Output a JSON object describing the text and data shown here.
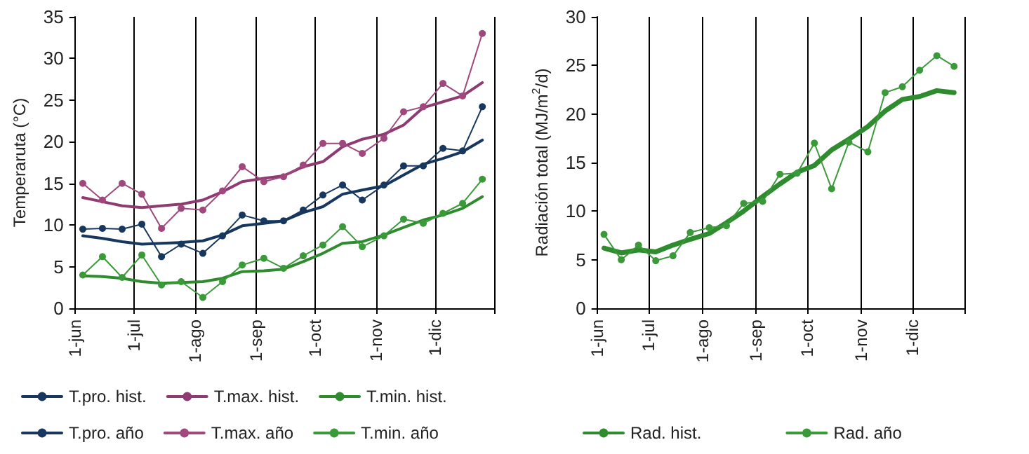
{
  "chart_data": [
    {
      "type": "line",
      "ylabel": "Temperaruta (°C)",
      "x": [
        "--06-05",
        "--06-15",
        "--06-25",
        "--07-05",
        "--07-15",
        "--07-25",
        "--08-05",
        "--08-15",
        "--08-25",
        "--09-05",
        "--09-15",
        "--09-25",
        "--10-05",
        "--10-15",
        "--10-25",
        "--11-05",
        "--11-15",
        "--11-25",
        "--12-05",
        "--12-15",
        "--12-25"
      ],
      "xlim": [
        "--06-01",
        "--12-31"
      ],
      "xticks": [
        {
          "value": "--06-01",
          "label": "1-jun"
        },
        {
          "value": "--07-01",
          "label": "1-jul"
        },
        {
          "value": "--08-01",
          "label": "1-ago"
        },
        {
          "value": "--09-01",
          "label": "1-sep"
        },
        {
          "value": "--10-01",
          "label": "1-oct"
        },
        {
          "value": "--11-01",
          "label": "1-nov"
        },
        {
          "value": "--12-01",
          "label": "1-dic"
        },
        {
          "value": "--12-31",
          "label": null
        }
      ],
      "ylim": [
        0,
        35
      ],
      "yticks": [
        0,
        5,
        10,
        15,
        20,
        25,
        30,
        35
      ],
      "grid": "x",
      "legend": "bottom",
      "series": [
        {
          "name": "T.pro. hist.",
          "color": "#17375e",
          "marker": "none",
          "values": [
            8.7,
            8.4,
            8.0,
            7.7,
            7.8,
            7.9,
            8.1,
            8.8,
            9.9,
            10.2,
            10.5,
            11.5,
            12.2,
            13.7,
            14.2,
            14.7,
            16.0,
            17.3,
            18.0,
            18.8,
            20.2
          ]
        },
        {
          "name": "T.max. hist.",
          "color": "#8e3b72",
          "marker": "none",
          "values": [
            13.3,
            12.8,
            12.3,
            12.1,
            12.3,
            12.5,
            13.0,
            14.0,
            15.2,
            15.6,
            15.9,
            17.0,
            17.6,
            19.4,
            20.3,
            20.9,
            22.0,
            24.1,
            24.8,
            25.5,
            27.1
          ]
        },
        {
          "name": "T.min. hist.",
          "color": "#2e8b2e",
          "marker": "none",
          "values": [
            3.9,
            3.8,
            3.6,
            3.2,
            3.0,
            3.1,
            3.2,
            3.6,
            4.4,
            4.5,
            4.7,
            5.6,
            6.6,
            7.8,
            8.0,
            8.8,
            9.7,
            10.6,
            11.2,
            12.0,
            13.4
          ]
        },
        {
          "name": "T.pro. año",
          "color": "#17375e",
          "marker": "circle",
          "values": [
            9.5,
            9.6,
            9.5,
            10.1,
            6.2,
            7.7,
            6.6,
            8.7,
            11.2,
            10.5,
            10.5,
            11.8,
            13.6,
            14.8,
            13.0,
            14.8,
            17.1,
            17.1,
            19.2,
            18.9,
            24.2
          ]
        },
        {
          "name": "T.max. año",
          "color": "#a0487e",
          "marker": "circle",
          "values": [
            15.0,
            13.0,
            15.0,
            13.7,
            9.6,
            12.0,
            11.8,
            14.1,
            17.0,
            15.2,
            15.8,
            17.2,
            19.8,
            19.8,
            18.6,
            20.4,
            23.6,
            24.2,
            27.0,
            25.5,
            33.0
          ]
        },
        {
          "name": "T.min. año",
          "color": "#3a9a3a",
          "marker": "circle",
          "values": [
            4.0,
            6.2,
            3.7,
            6.4,
            2.8,
            3.2,
            1.3,
            3.2,
            5.2,
            6.0,
            4.8,
            6.3,
            7.6,
            9.8,
            7.4,
            8.7,
            10.7,
            10.2,
            11.4,
            12.6,
            15.5
          ]
        }
      ]
    },
    {
      "type": "line",
      "ylabel": "Radiación total (MJ/m$^{2}$/d)",
      "x": [
        "--06-05",
        "--06-15",
        "--06-25",
        "--07-05",
        "--07-15",
        "--07-25",
        "--08-05",
        "--08-15",
        "--08-25",
        "--09-05",
        "--09-15",
        "--09-25",
        "--10-05",
        "--10-15",
        "--10-25",
        "--11-05",
        "--11-15",
        "--11-25",
        "--12-05",
        "--12-15",
        "--12-25"
      ],
      "xlim": [
        "--06-01",
        "--12-31"
      ],
      "xticks": [
        {
          "value": "--06-01",
          "label": "1-jun"
        },
        {
          "value": "--07-01",
          "label": "1-jul"
        },
        {
          "value": "--08-01",
          "label": "1-ago"
        },
        {
          "value": "--09-01",
          "label": "1-sep"
        },
        {
          "value": "--10-01",
          "label": "1-oct"
        },
        {
          "value": "--11-01",
          "label": "1-nov"
        },
        {
          "value": "--12-01",
          "label": "1-dic"
        },
        {
          "value": "--12-31",
          "label": null
        }
      ],
      "ylim": [
        0,
        30
      ],
      "yticks": [
        0,
        5,
        10,
        15,
        20,
        25,
        30
      ],
      "grid": "x",
      "legend": "bottom",
      "series": [
        {
          "name": "Rad. hist.",
          "color": "#2e8b2e",
          "marker": "none",
          "values": [
            6.2,
            5.7,
            6.0,
            5.8,
            6.5,
            7.1,
            7.7,
            8.8,
            10.0,
            11.5,
            12.8,
            14.0,
            14.7,
            16.3,
            17.4,
            18.7,
            20.3,
            21.5,
            21.8,
            22.4,
            22.2
          ]
        },
        {
          "name": "Rad. año",
          "color": "#3a9a3a",
          "marker": "circle",
          "values": [
            7.6,
            5.0,
            6.5,
            4.9,
            5.4,
            7.8,
            8.3,
            8.5,
            10.8,
            11.0,
            13.8,
            13.9,
            17.0,
            12.3,
            17.1,
            16.1,
            22.2,
            22.8,
            24.5,
            26.0,
            24.9
          ]
        }
      ]
    }
  ]
}
